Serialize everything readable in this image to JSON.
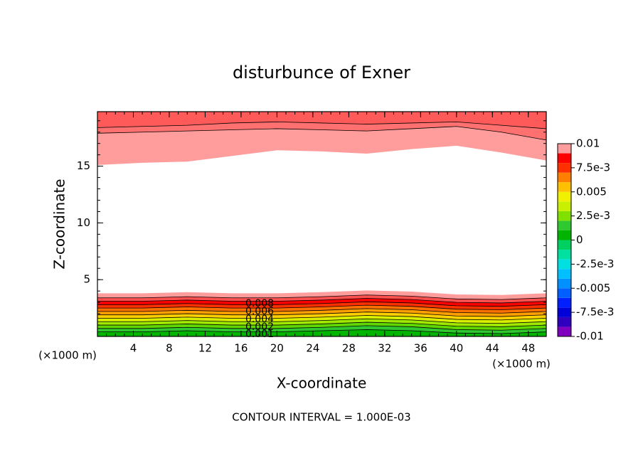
{
  "chart_data": {
    "type": "contour",
    "title": "disturbunce of Exner",
    "x_label": "X-coordinate",
    "y_label": "Z-coordinate",
    "x_unit": "(×1000 m)",
    "y_unit": "(×1000 m)",
    "footer": "CONTOUR INTERVAL = 1.000E-03",
    "xlim": [
      0,
      50
    ],
    "ylim": [
      0,
      19.8
    ],
    "xticks": [
      4,
      8,
      12,
      16,
      20,
      24,
      28,
      32,
      36,
      40,
      44,
      48
    ],
    "yticks": [
      5,
      10,
      15
    ],
    "x": [
      0,
      5,
      10,
      15,
      20,
      25,
      30,
      35,
      40,
      45,
      50
    ],
    "bottom_contours": [
      {
        "color": "#00b400",
        "z": [
          0.4,
          0.4,
          0.5,
          0.4,
          0.4,
          0.5,
          0.6,
          0.5,
          0.3,
          0.25,
          0.4
        ]
      },
      {
        "color": "#30c830",
        "z": [
          0.7,
          0.7,
          0.8,
          0.7,
          0.7,
          0.8,
          0.95,
          0.85,
          0.6,
          0.55,
          0.7
        ]
      },
      {
        "color": "#60d800",
        "z": [
          1.0,
          1.0,
          1.1,
          1.0,
          1.0,
          1.1,
          1.25,
          1.15,
          0.9,
          0.85,
          1.0
        ]
      },
      {
        "color": "#a0e800",
        "z": [
          1.3,
          1.3,
          1.4,
          1.3,
          1.3,
          1.4,
          1.55,
          1.45,
          1.2,
          1.15,
          1.3
        ]
      },
      {
        "color": "#d8f000",
        "z": [
          1.6,
          1.6,
          1.7,
          1.6,
          1.6,
          1.7,
          1.85,
          1.75,
          1.5,
          1.45,
          1.6
        ]
      },
      {
        "color": "#ffd000",
        "z": [
          1.9,
          1.9,
          2.0,
          1.9,
          1.9,
          2.0,
          2.15,
          2.05,
          1.8,
          1.75,
          1.9
        ]
      },
      {
        "color": "#ffa000",
        "z": [
          2.2,
          2.2,
          2.3,
          2.2,
          2.2,
          2.3,
          2.45,
          2.35,
          2.1,
          2.05,
          2.2
        ]
      },
      {
        "color": "#ff7000",
        "z": [
          2.5,
          2.5,
          2.6,
          2.5,
          2.5,
          2.6,
          2.75,
          2.65,
          2.4,
          2.35,
          2.5
        ]
      },
      {
        "color": "#ff3000",
        "z": [
          2.8,
          2.8,
          2.9,
          2.8,
          2.8,
          2.9,
          3.05,
          2.95,
          2.7,
          2.65,
          2.8
        ]
      },
      {
        "color": "#ff0000",
        "z": [
          3.1,
          3.1,
          3.2,
          3.1,
          3.1,
          3.2,
          3.35,
          3.25,
          3.0,
          2.95,
          3.1
        ]
      },
      {
        "color": "#ff5050",
        "z": [
          3.4,
          3.4,
          3.5,
          3.4,
          3.4,
          3.5,
          3.65,
          3.55,
          3.3,
          3.25,
          3.4
        ]
      },
      {
        "color": "#ff9c9c",
        "z": [
          3.8,
          3.8,
          3.9,
          3.8,
          3.8,
          3.9,
          4.05,
          3.95,
          3.7,
          3.65,
          3.8
        ]
      }
    ],
    "top_contours": [
      {
        "color": "#ff9c9c",
        "z": [
          15.1,
          15.3,
          15.4,
          15.9,
          16.4,
          16.3,
          16.1,
          16.5,
          16.8,
          16.2,
          15.5
        ]
      },
      {
        "color": "#ff7070",
        "z": [
          17.9,
          18.0,
          18.1,
          18.2,
          18.3,
          18.2,
          18.1,
          18.3,
          18.5,
          18.0,
          17.3
        ]
      },
      {
        "color": "#ff5a5a",
        "z": [
          18.4,
          18.5,
          18.6,
          18.8,
          18.9,
          18.8,
          18.7,
          18.8,
          18.9,
          18.6,
          18.3
        ]
      }
    ],
    "contour_labels": [
      0.008,
      0.006,
      0.004,
      0.002,
      0.001
    ],
    "colorbar": {
      "lim": [
        -0.01,
        0.01
      ],
      "colors": [
        "#8000c0",
        "#3000c0",
        "#0000d8",
        "#0020ff",
        "#0060ff",
        "#0090ff",
        "#00c0ff",
        "#00e0e0",
        "#00e0a0",
        "#00d060",
        "#00b400",
        "#30c830",
        "#80e000",
        "#c8f000",
        "#f0f000",
        "#ffc000",
        "#ff8000",
        "#ff3000",
        "#ff0000",
        "#ff9c9c"
      ],
      "ticks": [
        0.01,
        {
          "value": 0.0075,
          "label": "7.5e-3"
        },
        0.005,
        {
          "value": 0.0025,
          "label": "2.5e-3"
        },
        0,
        {
          "value": -0.0025,
          "label": "-2.5e-3"
        },
        -0.005,
        {
          "value": -0.0075,
          "label": "-7.5e-3"
        },
        -0.01
      ]
    }
  }
}
